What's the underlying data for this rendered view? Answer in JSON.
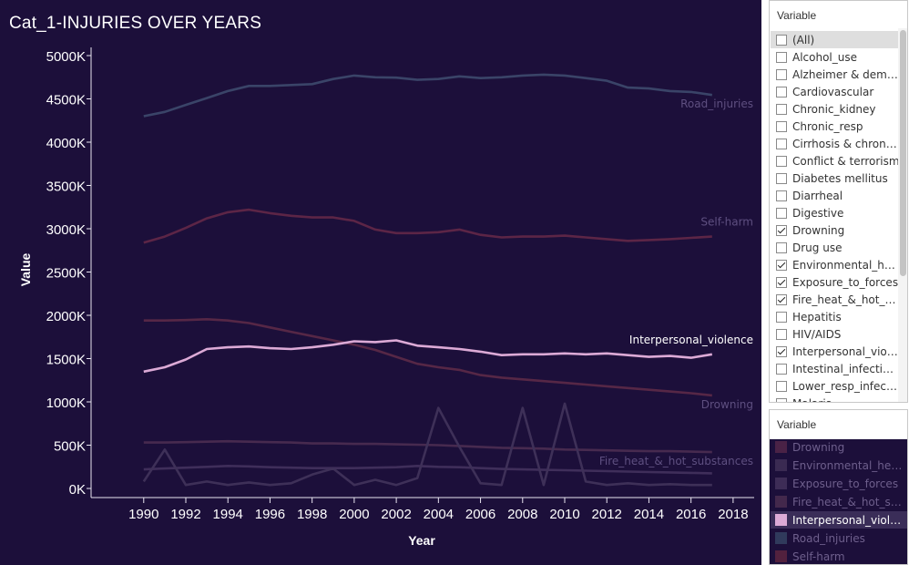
{
  "chart_title": "Cat_1-INJURIES OVER YEARS",
  "filter": {
    "title": "Variable",
    "items": [
      {
        "label": "(All)",
        "checked": false
      },
      {
        "label": "Alcohol_use",
        "checked": false
      },
      {
        "label": "Alzheimer & demen...",
        "checked": false
      },
      {
        "label": "Cardiovascular",
        "checked": false
      },
      {
        "label": "Chronic_kidney",
        "checked": false
      },
      {
        "label": "Chronic_resp",
        "checked": false
      },
      {
        "label": "Cirrhosis & chronic...",
        "checked": false
      },
      {
        "label": "Conflict & terrorism",
        "checked": false
      },
      {
        "label": "Diabetes mellitus",
        "checked": false
      },
      {
        "label": "Diarrheal",
        "checked": false
      },
      {
        "label": "Digestive",
        "checked": false
      },
      {
        "label": "Drowning",
        "checked": true
      },
      {
        "label": "Drug use",
        "checked": false
      },
      {
        "label": "Environmental_hea...",
        "checked": true
      },
      {
        "label": "Exposure_to_forces",
        "checked": true
      },
      {
        "label": "Fire_heat_&_hot_s...",
        "checked": true
      },
      {
        "label": "Hepatitis",
        "checked": false
      },
      {
        "label": "HIV/AIDS",
        "checked": false
      },
      {
        "label": "Interpersonal_viol...",
        "checked": true
      },
      {
        "label": "Intestinal_infections",
        "checked": false
      },
      {
        "label": "Lower_resp_infecti...",
        "checked": false
      },
      {
        "label": "Malaria",
        "checked": false
      }
    ]
  },
  "legend": {
    "title": "Variable",
    "items": [
      {
        "label": "Drowning",
        "color": "#4a2246",
        "active": false
      },
      {
        "label": "Environmental_heat...",
        "color": "#3a2a52",
        "active": false
      },
      {
        "label": "Exposure_to_forces",
        "color": "#3d2c56",
        "active": false
      },
      {
        "label": "Fire_heat_&_hot_su...",
        "color": "#43284c",
        "active": false
      },
      {
        "label": "Interpersonal_violen..",
        "color": "#dcaad6",
        "active": true
      },
      {
        "label": "Road_injuries",
        "color": "#303a5c",
        "active": false
      },
      {
        "label": "Self-harm",
        "color": "#52213e",
        "active": false
      }
    ]
  },
  "chart_data": {
    "type": "line",
    "xlabel": "Year",
    "ylabel": "Value",
    "x": [
      1990,
      1991,
      1992,
      1993,
      1994,
      1995,
      1996,
      1997,
      1998,
      1999,
      2000,
      2001,
      2002,
      2003,
      2004,
      2005,
      2006,
      2007,
      2008,
      2009,
      2010,
      2011,
      2012,
      2013,
      2014,
      2015,
      2016,
      2017
    ],
    "x_ticks": [
      "1990",
      "1992",
      "1994",
      "1996",
      "1998",
      "2000",
      "2002",
      "2004",
      "2006",
      "2008",
      "2010",
      "2012",
      "2014",
      "2016",
      "2018"
    ],
    "y_ticks": [
      "0K",
      "500K",
      "1000K",
      "1500K",
      "2000K",
      "2500K",
      "3000K",
      "3500K",
      "4000K",
      "4500K",
      "5000K"
    ],
    "xlim": [
      1987.5,
      2019
    ],
    "ylim": [
      0,
      5100
    ],
    "grid": false,
    "series": [
      {
        "name": "Road_injuries",
        "color": "#3a4468",
        "labeled": true,
        "values": [
          4300,
          4350,
          4430,
          4510,
          4590,
          4650,
          4650,
          4660,
          4670,
          4730,
          4770,
          4750,
          4745,
          4720,
          4730,
          4760,
          4740,
          4750,
          4770,
          4780,
          4770,
          4740,
          4710,
          4630,
          4620,
          4590,
          4580,
          4545
        ]
      },
      {
        "name": "Self-harm",
        "color": "#5c2546",
        "labeled": true,
        "values": [
          2840,
          2910,
          3010,
          3120,
          3190,
          3220,
          3180,
          3150,
          3130,
          3130,
          3090,
          2990,
          2950,
          2950,
          2960,
          2990,
          2930,
          2900,
          2910,
          2910,
          2920,
          2900,
          2880,
          2860,
          2870,
          2880,
          2895,
          2910
        ]
      },
      {
        "name": "Drowning",
        "color": "#562746",
        "labeled": true,
        "values": [
          1940,
          1940,
          1945,
          1955,
          1940,
          1910,
          1860,
          1810,
          1760,
          1710,
          1660,
          1600,
          1520,
          1440,
          1400,
          1370,
          1310,
          1280,
          1260,
          1240,
          1220,
          1200,
          1180,
          1160,
          1140,
          1120,
          1100,
          1075
        ]
      },
      {
        "name": "Interpersonal_violence",
        "color": "#dcaad6",
        "labeled": true,
        "values": [
          1350,
          1400,
          1490,
          1610,
          1630,
          1640,
          1620,
          1610,
          1630,
          1660,
          1700,
          1690,
          1710,
          1650,
          1630,
          1610,
          1580,
          1540,
          1550,
          1550,
          1560,
          1550,
          1560,
          1540,
          1520,
          1530,
          1510,
          1550
        ]
      },
      {
        "name": "Fire_heat_&_hot_substances",
        "color": "#472a4f",
        "labeled": true,
        "values": [
          530,
          530,
          535,
          540,
          545,
          540,
          535,
          530,
          520,
          520,
          515,
          515,
          510,
          505,
          500,
          490,
          480,
          470,
          465,
          460,
          450,
          445,
          440,
          435,
          430,
          430,
          425,
          420
        ]
      },
      {
        "name": "Exposure_to_forces",
        "color": "#3f2e5a",
        "labeled": false,
        "values": [
          220,
          230,
          240,
          250,
          260,
          255,
          245,
          240,
          235,
          235,
          235,
          240,
          245,
          260,
          250,
          245,
          235,
          225,
          220,
          215,
          210,
          205,
          200,
          195,
          190,
          185,
          180,
          175
        ]
      },
      {
        "name": "Environmental_heat_and_cold",
        "color": "#3e3058",
        "labeled": false,
        "values": [
          80,
          450,
          40,
          80,
          40,
          70,
          40,
          60,
          160,
          230,
          40,
          100,
          40,
          120,
          930,
          480,
          60,
          40,
          930,
          40,
          980,
          80,
          40,
          60,
          40,
          50,
          40,
          40
        ]
      }
    ]
  }
}
